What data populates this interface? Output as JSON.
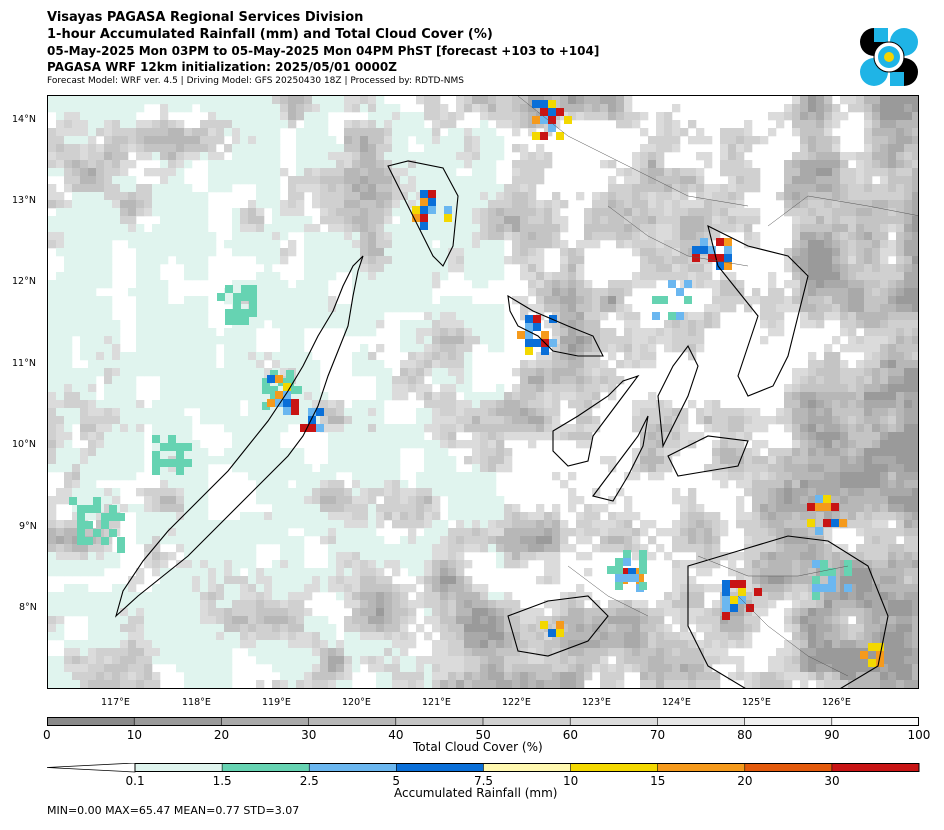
{
  "header": {
    "line1": "Visayas PAGASA Regional Services Division",
    "line2": "1-hour Accumulated Rainfall (mm) and Total Cloud Cover (%)",
    "line3": "05-May-2025 Mon 03PM to 05-May-2025 Mon 04PM PhST [forecast +103 to +104]",
    "line4": "PAGASA WRF 12km initialization: 2025/05/01 0000Z",
    "line5": "Forecast Model: WRF ver. 4.5 | Driving Model: GFS 20250430 18Z | Processed by: RDTD-NMS"
  },
  "logo": {
    "icon": "pagasa-logo-icon",
    "colors": [
      "#000000",
      "#1fb4e6",
      "#ffffff",
      "#f5d400"
    ]
  },
  "map": {
    "lon_labels": [
      "117°E",
      "118°E",
      "119°E",
      "120°E",
      "121°E",
      "122°E",
      "123°E",
      "124°E",
      "125°E",
      "126°E"
    ],
    "lat_labels": [
      "14°N",
      "13°N",
      "12°N",
      "11°N",
      "10°N",
      "9°N",
      "8°N"
    ],
    "lon_range": [
      116.0,
      126.9
    ],
    "lat_range": [
      7.0,
      14.3
    ]
  },
  "cloud_colorbar": {
    "title": "Total Cloud Cover (%)",
    "ticks": [
      "0",
      "10",
      "20",
      "30",
      "40",
      "50",
      "60",
      "70",
      "80",
      "90",
      "100"
    ],
    "colors": [
      "#8a8a8a",
      "#9a9a9a",
      "#a9a9a9",
      "#b7b7b7",
      "#c4c4c4",
      "#d0d0d0",
      "#dbdbdb",
      "#e6e6e6",
      "#f0f0f0",
      "#fafafa"
    ]
  },
  "rain_colorbar": {
    "title": "Accumulated Rainfall (mm)",
    "ticks": [
      "0.1",
      "1.5",
      "2.5",
      "5",
      "7.5",
      "10",
      "15",
      "20",
      "30"
    ],
    "colors": [
      "#ffffff",
      "#dff4ee",
      "#66d3b2",
      "#6bb7f0",
      "#0a6fd8",
      "#fff8b0",
      "#f3d800",
      "#f59a1c",
      "#e35a0c",
      "#c81414",
      "#c81414"
    ]
  },
  "stats": "MIN=0.00   MAX=65.47   MEAN=0.77   STD=3.07"
}
